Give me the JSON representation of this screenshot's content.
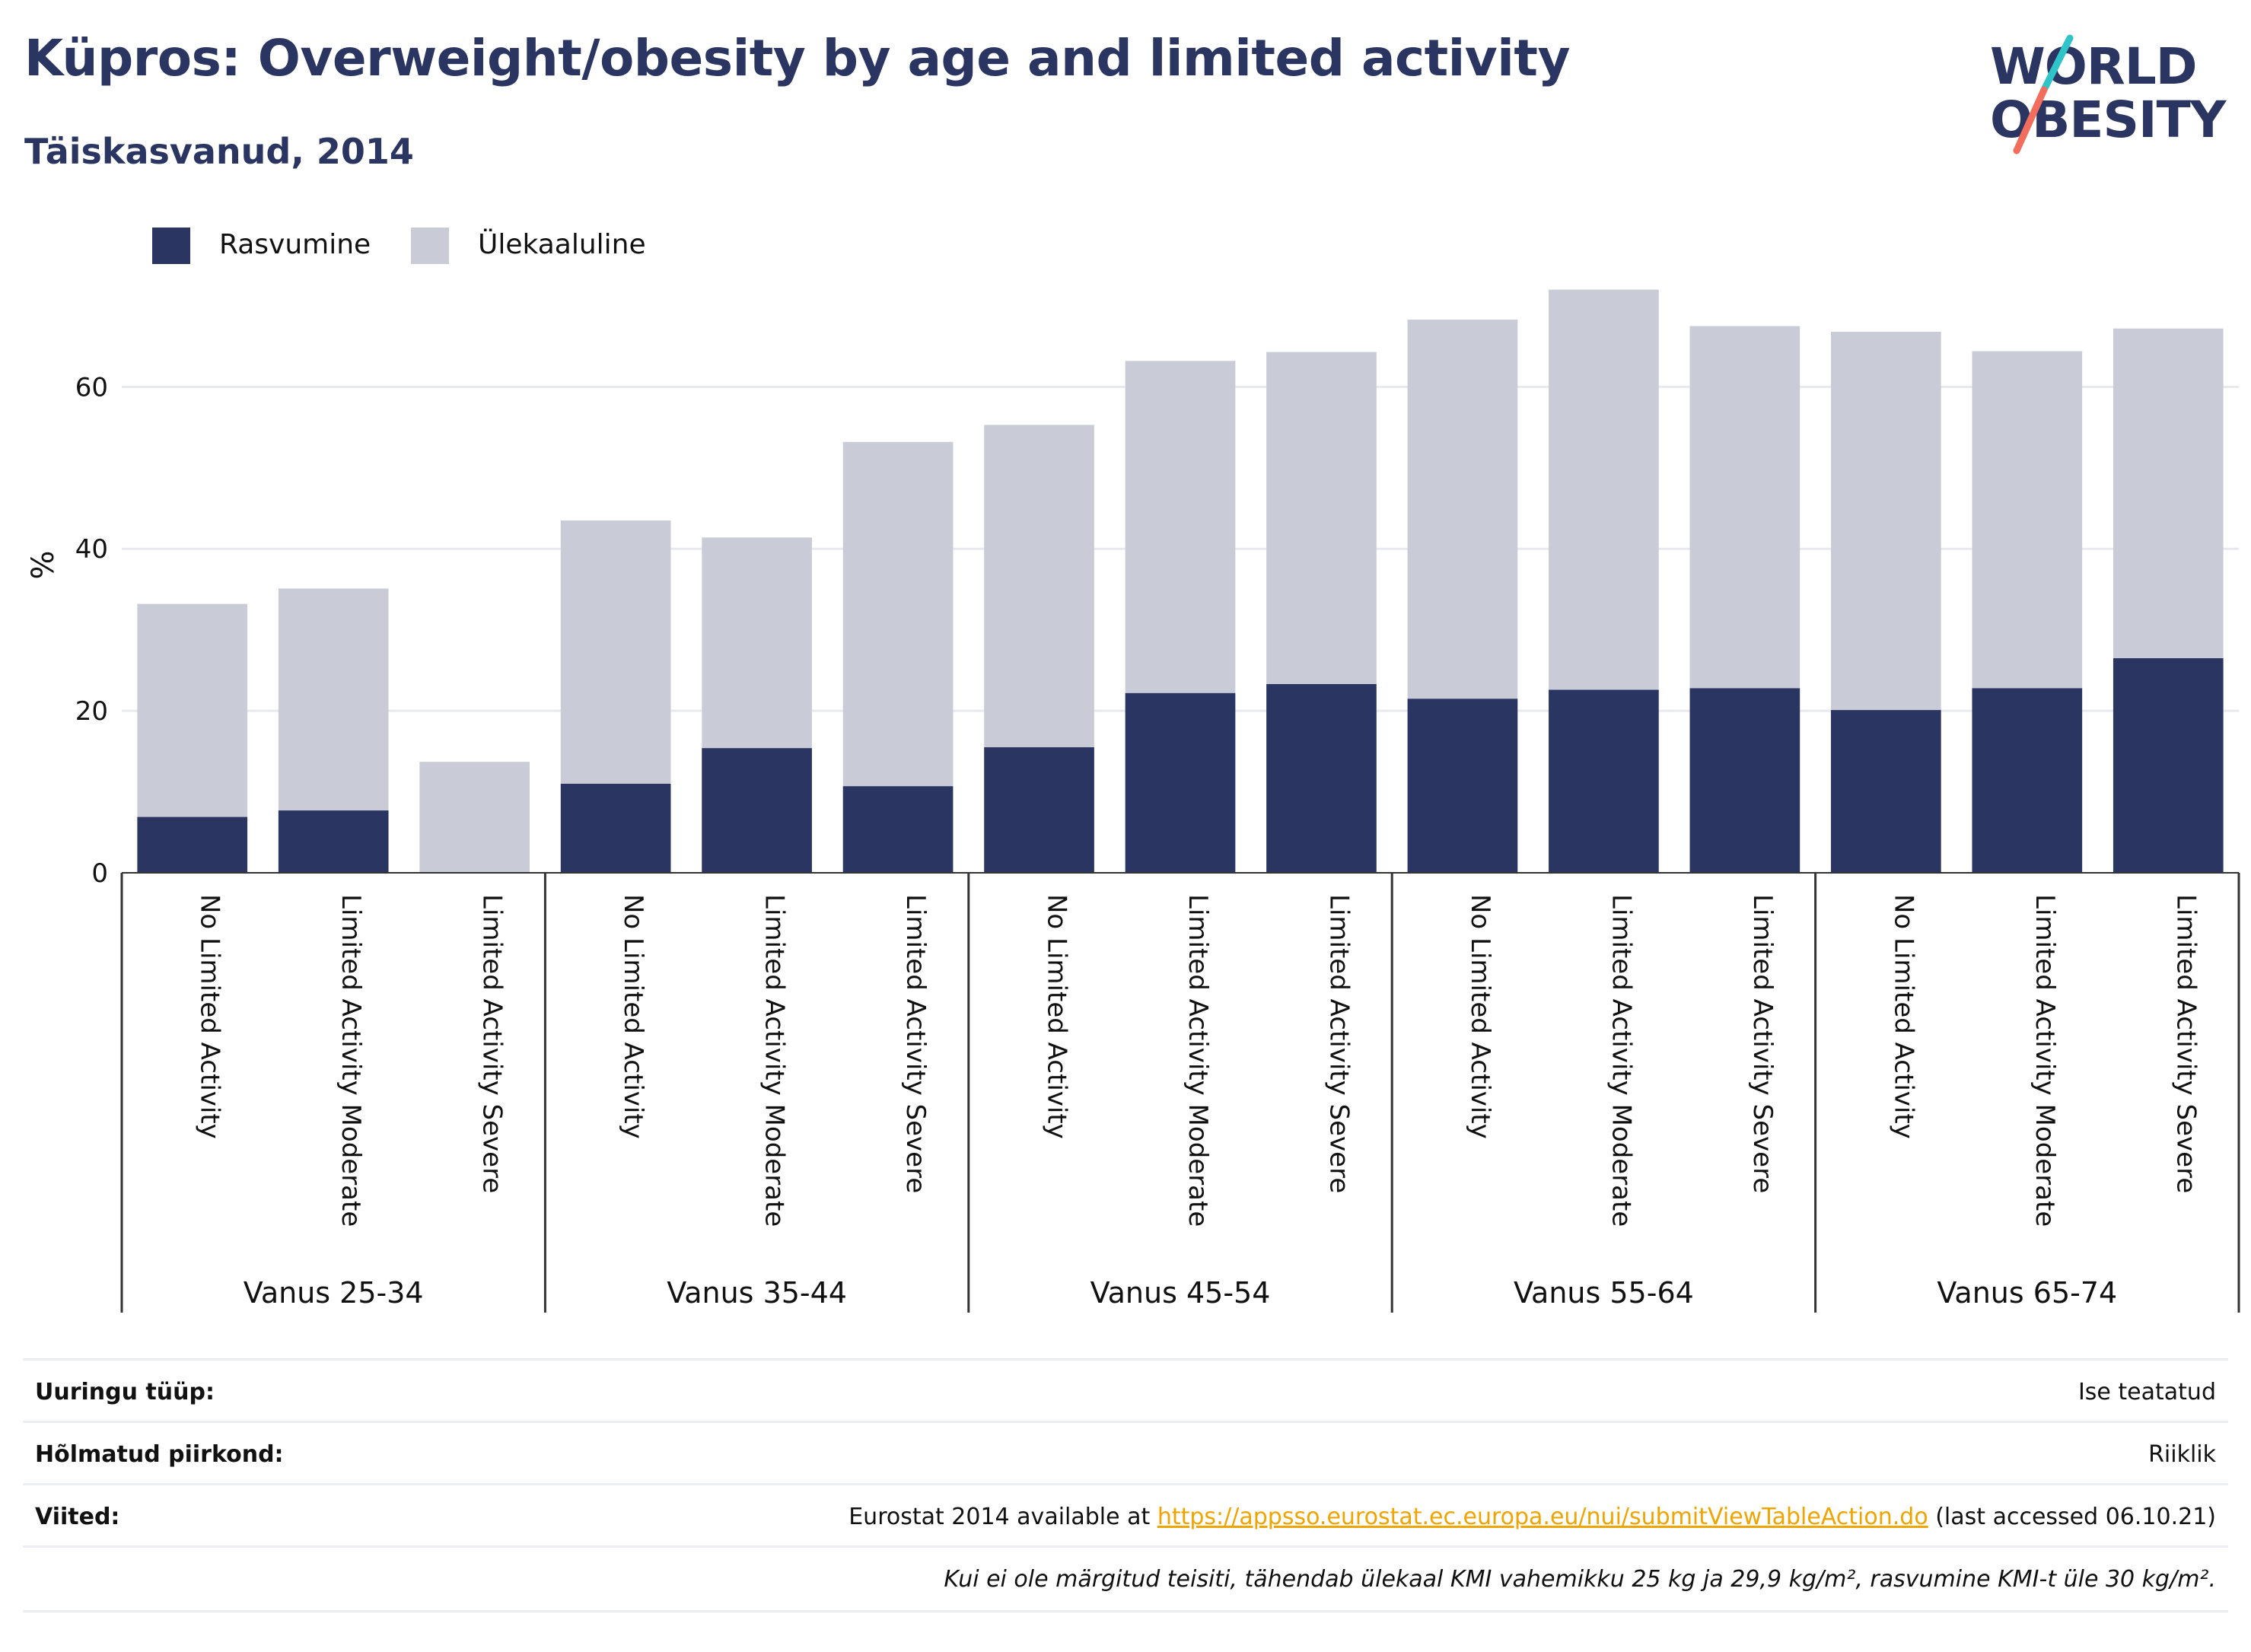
{
  "header": {
    "title": "Küpros: Overweight/obesity by age and limited activity",
    "subtitle": "Täiskasvanud, 2014",
    "logo_top": "WORLD",
    "logo_bottom": "OBESITY"
  },
  "colors": {
    "obesity": "#2a3561",
    "overweight": "#c9cbd7",
    "text": "#2a3561",
    "link": "#f0a400",
    "logo_teal": "#2ec4c8",
    "logo_coral": "#f26d5b"
  },
  "legend": [
    {
      "label": "Rasvumine",
      "color": "#2a3561"
    },
    {
      "label": "Ülekaaluline",
      "color": "#c9cbd7"
    }
  ],
  "chart_data": {
    "type": "bar",
    "stacked": true,
    "ylabel": "%",
    "ylim": [
      0,
      73
    ],
    "yticks": [
      0,
      20,
      40,
      60
    ],
    "grid": true,
    "legend_position": "top-left",
    "groups": [
      "Vanus 25-34",
      "Vanus 35-44",
      "Vanus 45-54",
      "Vanus 55-64",
      "Vanus 65-74"
    ],
    "categories": [
      "No Limited Activity",
      "Limited Activity Moderate",
      "Limited Activity Severe",
      "No Limited Activity",
      "Limited Activity Moderate",
      "Limited Activity Severe",
      "No Limited Activity",
      "Limited Activity Moderate",
      "Limited Activity Severe",
      "No Limited Activity",
      "Limited Activity Moderate",
      "Limited Activity Severe",
      "No Limited Activity",
      "Limited Activity Moderate",
      "Limited Activity Severe"
    ],
    "series": [
      {
        "name": "Rasvumine",
        "values": [
          6.9,
          7.7,
          0,
          11.0,
          15.4,
          10.7,
          15.5,
          22.2,
          23.3,
          21.5,
          22.6,
          22.8,
          20.1,
          22.8,
          26.5
        ]
      },
      {
        "name": "Ülekaaluline",
        "values": [
          26.3,
          27.4,
          13.7,
          32.5,
          26.0,
          42.5,
          39.8,
          41.0,
          41.0,
          46.8,
          49.4,
          44.7,
          46.7,
          41.6,
          40.7
        ]
      }
    ]
  },
  "info": {
    "survey_type_label": "Uuringu tüüp:",
    "survey_type_value": "Ise teatatud",
    "coverage_label": "Hõlmatud piirkond:",
    "coverage_value": "Riiklik",
    "references_label": "Viited:",
    "references_prefix": "Eurostat 2014 available at ",
    "references_link": "https://appsso.eurostat.ec.europa.eu/nui/submitViewTableAction.do",
    "references_suffix": " (last accessed 06.10.21)",
    "note": "Kui ei ole märgitud teisiti, tähendab ülekaal KMI vahemikku 25 kg ja 29,9 kg/m², rasvumine KMI-t üle 30 kg/m²."
  }
}
